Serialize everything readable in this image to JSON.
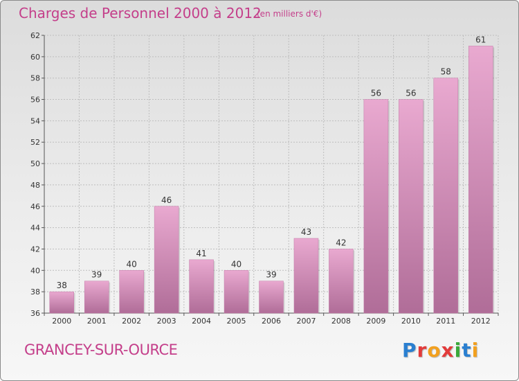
{
  "header": {
    "title": "Charges de Personnel 2000 à 2012",
    "subtitle": "(en milliers d'€)"
  },
  "footer": {
    "commune": "GRANCEY-SUR-OURCE",
    "brand_letters": [
      {
        "char": "P",
        "color": "#2a7fd0"
      },
      {
        "char": "r",
        "color": "#e23b3b"
      },
      {
        "char": "o",
        "color": "#f2a01f"
      },
      {
        "char": "x",
        "color": "#e23b3b"
      },
      {
        "char": "i",
        "color": "#3aa93a"
      },
      {
        "char": "t",
        "color": "#2a7fd0"
      },
      {
        "char": "i",
        "color": "#f2a01f"
      }
    ]
  },
  "colors": {
    "bar_light": "#e9a9d0",
    "bar_dark": "#b06d98",
    "text": "#333333",
    "grid": "#bdbdbd"
  },
  "chart_data": {
    "type": "bar",
    "title": "Charges de Personnel 2000 à 2012",
    "subtitle": "(en milliers d'€)",
    "categories": [
      "2000",
      "2001",
      "2002",
      "2003",
      "2004",
      "2005",
      "2006",
      "2007",
      "2008",
      "2009",
      "2010",
      "2011",
      "2012"
    ],
    "values": [
      38,
      39,
      40,
      46,
      41,
      40,
      39,
      43,
      42,
      56,
      56,
      58,
      61
    ],
    "ylim": [
      36,
      62
    ],
    "yticks": [
      36,
      38,
      40,
      42,
      44,
      46,
      48,
      50,
      52,
      54,
      56,
      58,
      60,
      62
    ],
    "grid": true,
    "data_labels": true,
    "legend": "none"
  }
}
